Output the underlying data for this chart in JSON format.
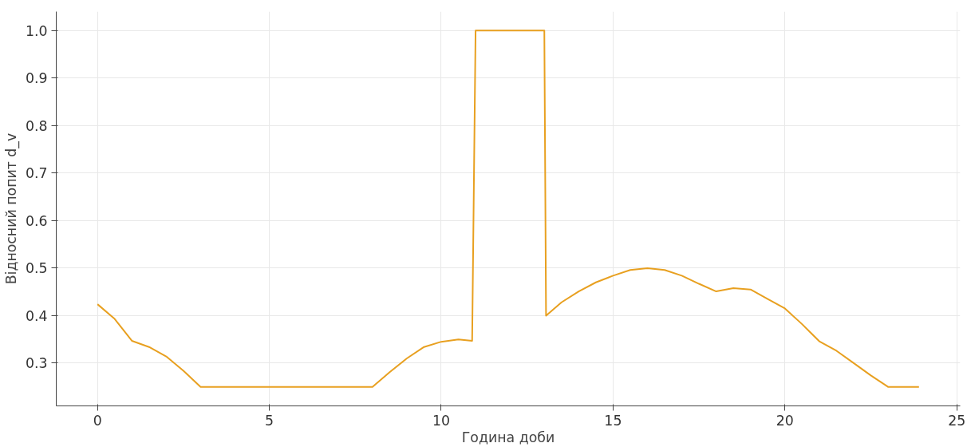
{
  "chart_data": {
    "type": "line",
    "xlabel": "Година доби",
    "ylabel": "Відносний попит d_v",
    "x": [
      0,
      0.5,
      1,
      1.5,
      2,
      2.5,
      3,
      4,
      5,
      6,
      7,
      8,
      8.5,
      9,
      9.5,
      10,
      10.5,
      10.9,
      11,
      12,
      13,
      13.05,
      13.5,
      14,
      14.5,
      15,
      15.5,
      16,
      16.5,
      17,
      17.5,
      18,
      18.5,
      19,
      19.5,
      20,
      20.5,
      21,
      21.5,
      22,
      22.5,
      23,
      23.9
    ],
    "series": [
      {
        "color": "#e8a020",
        "values": [
          0.424,
          0.393,
          0.347,
          0.334,
          0.314,
          0.284,
          0.25,
          0.25,
          0.25,
          0.25,
          0.25,
          0.25,
          0.281,
          0.31,
          0.334,
          0.345,
          0.35,
          0.347,
          1.0,
          1.0,
          1.0,
          0.4,
          0.428,
          0.451,
          0.47,
          0.484,
          0.496,
          0.5,
          0.496,
          0.484,
          0.467,
          0.451,
          0.458,
          0.455,
          0.435,
          0.415,
          0.382,
          0.346,
          0.326,
          0.3,
          0.274,
          0.25,
          0.25
        ]
      }
    ],
    "xlim": [
      -1.2,
      25.1
    ],
    "ylim": [
      0.21,
      1.04
    ],
    "xticks": [
      0,
      5,
      10,
      15,
      20,
      25
    ],
    "yticks": [
      0.3,
      0.4,
      0.5,
      0.6,
      0.7,
      0.8,
      0.9,
      {
        "value": 1,
        "label": "1.0"
      }
    ],
    "grid": true,
    "marker": "none",
    "line_style": "solid"
  }
}
